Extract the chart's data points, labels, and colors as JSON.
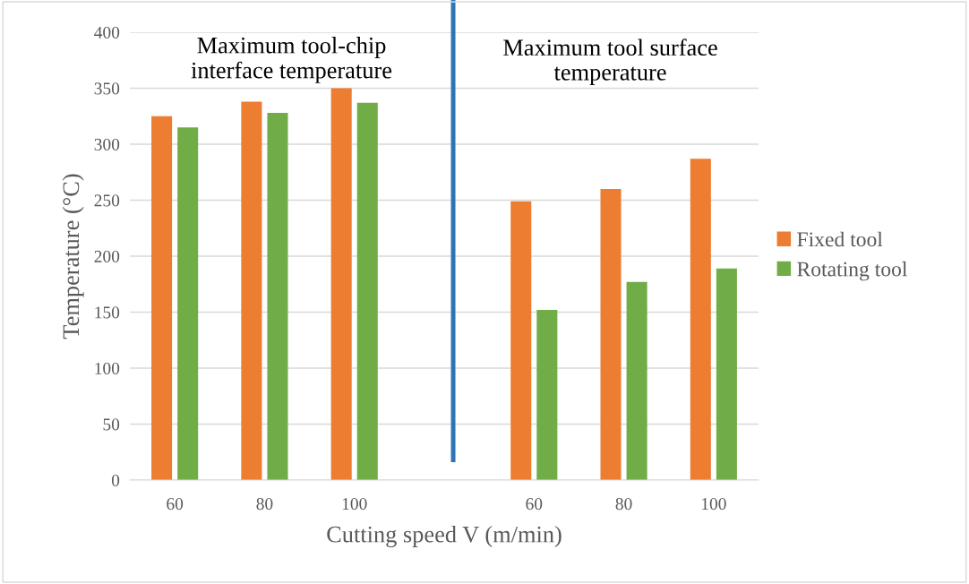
{
  "chart_data": {
    "type": "bar",
    "xlabel": "Cutting speed V (m/min)",
    "ylabel": "Temperature (°C)",
    "categories": [
      "60",
      "80",
      "100",
      null,
      "60",
      "80",
      "100"
    ],
    "series": [
      {
        "name": "Fixed tool",
        "color": "#ed7d31",
        "values": [
          325,
          338,
          350,
          null,
          249,
          260,
          287
        ]
      },
      {
        "name": "Rotating tool",
        "color": "#70ad47",
        "values": [
          315,
          328,
          337,
          null,
          152,
          177,
          189
        ]
      }
    ],
    "ylim": [
      0,
      400
    ],
    "yticks": [
      0,
      50,
      100,
      150,
      200,
      250,
      300,
      350,
      400
    ],
    "grid": "y",
    "legend": "right",
    "annotations": [
      "Maximum tool-chip\ninterface temperature",
      "Maximum tool surface\ntemperature"
    ]
  }
}
